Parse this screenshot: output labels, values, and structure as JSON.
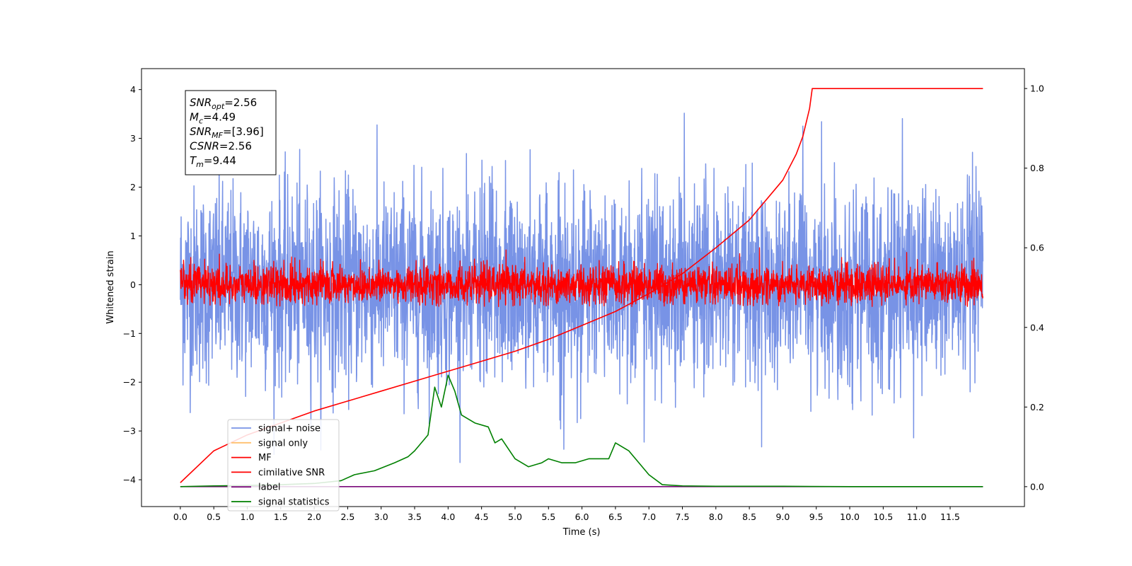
{
  "chart_data": {
    "type": "line",
    "xlabel": "Time (s)",
    "ylabel": "Whitened strain",
    "xlim": [
      -0.58,
      12.61
    ],
    "ylim_left": [
      -4.55,
      4.43
    ],
    "ylim_right": [
      -0.05,
      1.05
    ],
    "x_ticks": [
      0.0,
      0.5,
      1.0,
      1.5,
      2.0,
      2.5,
      3.0,
      3.5,
      4.0,
      4.5,
      5.0,
      5.5,
      6.0,
      6.5,
      7.0,
      7.5,
      8.0,
      8.5,
      9.0,
      9.5,
      10.0,
      10.5,
      11.0,
      11.5
    ],
    "x_tick_labels": [
      "0.0",
      "0.5",
      "1.0",
      "1.5",
      "2.0",
      "2.5",
      "3.0",
      "3.5",
      "4.0",
      "4.5",
      "5.0",
      "5.5",
      "6.0",
      "6.5",
      "7.0",
      "7.5",
      "8.0",
      "8.5",
      "9.0",
      "9.5",
      "10.0",
      "10.5",
      "11.0",
      "11.5"
    ],
    "y_left_ticks": [
      -4,
      -3,
      -2,
      -1,
      0,
      1,
      2,
      3,
      4
    ],
    "y_left_tick_labels": [
      "−4",
      "−3",
      "−2",
      "−1",
      "0",
      "1",
      "2",
      "3",
      "4"
    ],
    "y_right_ticks": [
      0.0,
      0.2,
      0.4,
      0.6,
      0.8,
      1.0
    ],
    "y_right_tick_labels": [
      "0.0",
      "0.2",
      "0.4",
      "0.6",
      "0.8",
      "1.0"
    ],
    "annotation": {
      "lines": [
        {
          "main": "SNR",
          "sub": "opt",
          "rest": "=2.56"
        },
        {
          "main": "M",
          "sub": "c",
          "rest": "=4.49"
        },
        {
          "main": "SNR",
          "sub": "MF",
          "rest": "=[3.96]"
        },
        {
          "main": "CSNR",
          "sub": "",
          "rest": "=2.56"
        },
        {
          "main": "T",
          "sub": "m",
          "rest": "=9.44"
        }
      ]
    },
    "legend": {
      "position": "lower-left",
      "entries": [
        {
          "label": "signal+ noise",
          "color": "#7893e6"
        },
        {
          "label": "signal only",
          "color": "#ffc06e"
        },
        {
          "label": "MF",
          "color": "#ff0000"
        },
        {
          "label": "cimilative SNR",
          "color": "#ff0000"
        },
        {
          "label": "label",
          "color": "#7b0b7b"
        },
        {
          "label": "signal statistics",
          "color": "#008000"
        }
      ]
    },
    "series": [
      {
        "name": "signal+ noise",
        "axis": "left",
        "color": "#7893e6",
        "kind": "noise",
        "x_range": [
          0.0,
          11.99
        ],
        "approx_std": 1.0,
        "approx_max": 4.0,
        "approx_min": -4.0
      },
      {
        "name": "MF",
        "axis": "left",
        "color": "#ff0000",
        "kind": "noise",
        "x_range": [
          0.0,
          11.99
        ],
        "approx_std": 0.2,
        "approx_max": 1.0,
        "approx_min": -0.45
      },
      {
        "name": "cimilative SNR",
        "axis": "right",
        "color": "#ff0000",
        "x": [
          0.0,
          0.5,
          1.0,
          1.5,
          2.0,
          2.5,
          3.0,
          3.5,
          4.0,
          4.5,
          5.0,
          5.5,
          6.0,
          6.5,
          7.0,
          7.5,
          8.0,
          8.5,
          9.0,
          9.2,
          9.3,
          9.4,
          9.44,
          10.0,
          11.0,
          11.99
        ],
        "y": [
          0.01,
          0.09,
          0.13,
          0.16,
          0.19,
          0.215,
          0.24,
          0.265,
          0.29,
          0.315,
          0.34,
          0.37,
          0.405,
          0.44,
          0.485,
          0.535,
          0.6,
          0.67,
          0.77,
          0.835,
          0.88,
          0.95,
          1.0,
          1.0,
          1.0,
          1.0
        ]
      },
      {
        "name": "label",
        "axis": "right",
        "color": "#7b0b7b",
        "x": [
          0.0,
          11.99
        ],
        "y": [
          0.0,
          0.0
        ]
      },
      {
        "name": "signal statistics",
        "axis": "right",
        "color": "#008000",
        "x": [
          0.0,
          0.5,
          1.0,
          1.5,
          2.0,
          2.4,
          2.6,
          2.9,
          3.2,
          3.4,
          3.5,
          3.6,
          3.7,
          3.8,
          3.9,
          4.0,
          4.1,
          4.2,
          4.4,
          4.6,
          4.7,
          4.8,
          5.0,
          5.2,
          5.4,
          5.5,
          5.7,
          5.9,
          6.1,
          6.3,
          6.4,
          6.5,
          6.6,
          6.7,
          6.8,
          6.9,
          7.0,
          7.2,
          7.5,
          8.0,
          8.5,
          9.0,
          10.0,
          11.0,
          11.99
        ],
        "y": [
          0.0,
          0.002,
          0.003,
          0.005,
          0.008,
          0.015,
          0.03,
          0.04,
          0.06,
          0.075,
          0.09,
          0.11,
          0.13,
          0.25,
          0.2,
          0.28,
          0.24,
          0.18,
          0.16,
          0.15,
          0.11,
          0.12,
          0.07,
          0.05,
          0.06,
          0.07,
          0.06,
          0.06,
          0.07,
          0.07,
          0.07,
          0.11,
          0.1,
          0.09,
          0.07,
          0.05,
          0.03,
          0.005,
          0.002,
          0.001,
          0.001,
          0.001,
          0.0,
          0.0,
          0.0
        ]
      }
    ]
  }
}
